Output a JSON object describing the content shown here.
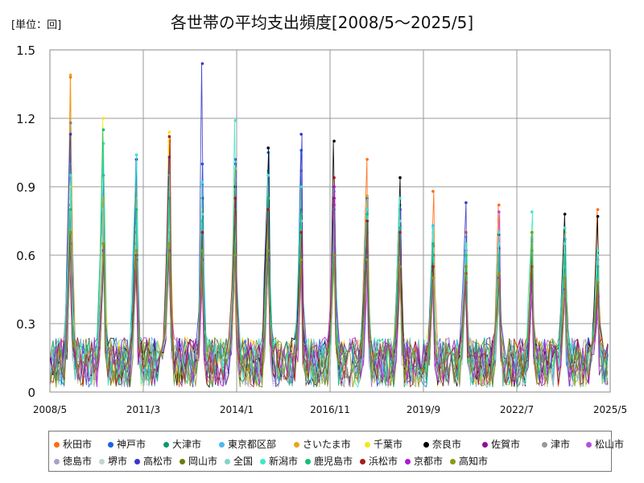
{
  "unit_label": "[単位：回]",
  "chart_data": {
    "type": "line",
    "title": "各世帯の平均支出頻度[2008/5～2025/5]",
    "xlabel": "",
    "ylabel": "",
    "ylim": [
      0,
      1.5
    ],
    "yticks": [
      "0",
      "0.3",
      "0.6",
      "0.9",
      "1.2",
      "1.5"
    ],
    "ytick_values": [
      0,
      0.3,
      0.6,
      0.9,
      1.2,
      1.5
    ],
    "xticks": [
      "2008/5",
      "2011/3",
      "2014/1",
      "2016/11",
      "2019/9",
      "2022/7",
      "2025/5"
    ],
    "grid": true,
    "legend_position": "bottom",
    "series": [
      {
        "name": "秋田市",
        "color": "#ff6a13",
        "peaks": [
          1.38,
          0.85,
          0.7,
          1.1,
          0.6,
          0.55,
          0.8,
          0.97,
          0.82,
          1.02,
          0.73,
          0.88,
          0.7,
          0.82,
          0.6,
          0.52,
          0.8
        ]
      },
      {
        "name": "神戸市",
        "color": "#1565e5",
        "peaks": [
          1.18,
          0.95,
          1.02,
          0.96,
          1.0,
          1.0,
          1.05,
          1.06,
          0.88,
          0.85,
          0.8,
          0.56,
          0.62,
          0.62,
          0.67,
          0.62,
          0.6
        ]
      },
      {
        "name": "大津市",
        "color": "#0b9a6a",
        "peaks": [
          0.82,
          0.8,
          0.75,
          0.85,
          0.78,
          0.8,
          0.95,
          0.8,
          0.82,
          0.78,
          0.72,
          0.6,
          0.55,
          0.55,
          0.62,
          0.57,
          0.5
        ]
      },
      {
        "name": "東京都区部",
        "color": "#4fb8f0",
        "peaks": [
          1.0,
          1.09,
          1.04,
          0.99,
          0.91,
          0.93,
          0.97,
          0.9,
          0.85,
          0.84,
          0.82,
          0.73,
          0.68,
          0.65,
          0.7,
          0.67,
          0.62
        ]
      },
      {
        "name": "さいたま市",
        "color": "#e8a617",
        "peaks": [
          1.39,
          0.85,
          0.9,
          1.1,
          0.75,
          0.9,
          0.8,
          0.9,
          0.85,
          0.86,
          0.8,
          0.55,
          0.6,
          0.62,
          0.68,
          0.7,
          0.62
        ]
      },
      {
        "name": "千葉市",
        "color": "#f5e61a",
        "peaks": [
          0.9,
          1.2,
          0.85,
          1.14,
          0.8,
          0.98,
          0.85,
          0.75,
          0.8,
          0.76,
          0.75,
          0.55,
          0.55,
          0.55,
          0.6,
          0.55,
          0.52
        ]
      },
      {
        "name": "奈良市",
        "color": "#000000",
        "peaks": [
          0.7,
          0.65,
          0.6,
          0.6,
          0.85,
          0.9,
          1.07,
          0.8,
          1.1,
          0.75,
          0.94,
          0.6,
          0.55,
          0.69,
          0.6,
          0.78,
          0.77
        ]
      },
      {
        "name": "佐賀市",
        "color": "#8a0f9a",
        "peaks": [
          0.6,
          0.6,
          0.55,
          0.6,
          0.55,
          0.6,
          0.58,
          0.9,
          0.85,
          0.8,
          0.6,
          0.5,
          0.5,
          0.48,
          0.45,
          0.42,
          0.35
        ]
      },
      {
        "name": "津市",
        "color": "#999999",
        "peaks": [
          0.8,
          0.7,
          0.65,
          0.7,
          0.6,
          0.6,
          0.62,
          0.6,
          0.65,
          0.6,
          0.58,
          0.52,
          0.5,
          0.5,
          0.52,
          0.5,
          0.45
        ]
      },
      {
        "name": "松山市",
        "color": "#b84dd6",
        "peaks": [
          0.75,
          0.62,
          0.6,
          0.65,
          0.55,
          0.6,
          0.58,
          0.55,
          0.6,
          0.55,
          0.55,
          0.5,
          0.45,
          0.79,
          0.48,
          0.45,
          0.4
        ]
      },
      {
        "name": "徳島市",
        "color": "#a7a3c9",
        "peaks": [
          0.7,
          0.6,
          0.58,
          0.6,
          0.55,
          0.58,
          0.6,
          0.55,
          0.58,
          0.52,
          0.55,
          0.48,
          0.45,
          0.45,
          0.48,
          0.45,
          0.42
        ]
      },
      {
        "name": "堺市",
        "color": "#c2d4d6",
        "peaks": [
          0.65,
          0.6,
          0.55,
          0.6,
          0.55,
          0.58,
          0.55,
          0.52,
          0.55,
          0.5,
          0.52,
          0.45,
          0.45,
          0.45,
          0.45,
          0.42,
          0.4
        ]
      },
      {
        "name": "高松市",
        "color": "#3a35c9",
        "peaks": [
          1.13,
          0.6,
          1.02,
          1.03,
          1.44,
          1.02,
          0.95,
          1.13,
          0.9,
          0.7,
          0.8,
          0.64,
          0.83,
          0.63,
          0.66,
          0.67,
          0.58
        ]
      },
      {
        "name": "岡山市",
        "color": "#6e7a0e",
        "peaks": [
          0.7,
          0.65,
          0.6,
          0.65,
          0.6,
          0.65,
          0.6,
          0.58,
          0.6,
          0.55,
          0.55,
          0.52,
          0.5,
          0.5,
          0.7,
          0.5,
          0.45
        ]
      },
      {
        "name": "全国",
        "color": "#7fd4c7",
        "peaks": [
          0.85,
          0.8,
          0.75,
          0.8,
          0.78,
          0.8,
          0.8,
          0.75,
          0.8,
          0.78,
          0.75,
          0.7,
          0.65,
          0.65,
          0.68,
          0.65,
          0.6
        ]
      },
      {
        "name": "新潟市",
        "color": "#3ee8c8",
        "peaks": [
          0.95,
          1.09,
          1.04,
          0.95,
          0.92,
          1.19,
          0.95,
          0.9,
          0.88,
          0.8,
          0.85,
          0.72,
          0.65,
          0.7,
          0.79,
          0.72,
          0.62
        ]
      },
      {
        "name": "鹿児島市",
        "color": "#12c074",
        "peaks": [
          0.8,
          1.15,
          0.8,
          0.85,
          0.75,
          0.8,
          0.85,
          0.78,
          0.8,
          0.78,
          0.72,
          0.65,
          0.6,
          0.6,
          0.62,
          0.6,
          0.55
        ]
      },
      {
        "name": "浜松市",
        "color": "#a81c1c",
        "peaks": [
          0.7,
          0.65,
          0.6,
          1.12,
          0.7,
          0.85,
          0.8,
          0.7,
          0.94,
          0.75,
          0.7,
          0.55,
          0.52,
          0.5,
          0.55,
          0.5,
          0.48
        ]
      },
      {
        "name": "京都市",
        "color": "#b01ad6",
        "peaks": [
          0.65,
          0.62,
          0.58,
          0.62,
          0.58,
          0.6,
          0.58,
          0.55,
          0.9,
          0.55,
          0.55,
          0.5,
          0.48,
          0.5,
          0.48,
          0.45,
          0.42
        ]
      },
      {
        "name": "高知市",
        "color": "#8c9a12",
        "peaks": [
          0.7,
          0.65,
          0.62,
          0.65,
          0.62,
          0.6,
          0.62,
          0.58,
          0.6,
          0.58,
          0.55,
          0.5,
          0.55,
          0.52,
          0.7,
          0.5,
          0.48
        ]
      }
    ]
  }
}
